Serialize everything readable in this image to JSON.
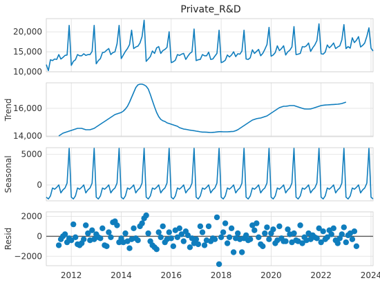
{
  "chart_data": {
    "type": "line",
    "title": "Private_R&D",
    "x_range": [
      "2011-01",
      "2024-02"
    ],
    "x_ticks": [
      "2012",
      "2014",
      "2016",
      "2018",
      "2020",
      "2022",
      "2024"
    ],
    "grid": true,
    "panels": [
      {
        "name": "observed",
        "ylabel": "",
        "type": "line",
        "ylim": [
          10000,
          23300
        ],
        "y_ticks": [
          {
            "value": 10000,
            "label": "10,000"
          },
          {
            "value": 15000,
            "label": "15,000"
          },
          {
            "value": 20000,
            "label": "20,000"
          }
        ],
        "x_start": "2011-01",
        "values": [
          11800,
          10300,
          13000,
          12800,
          13200,
          13100,
          14300,
          13200,
          13600,
          14100,
          14200,
          21600,
          11600,
          12600,
          13000,
          14300,
          14000,
          14000,
          14500,
          14100,
          14300,
          14300,
          15100,
          21600,
          12000,
          12800,
          13300,
          14800,
          14900,
          15400,
          15800,
          14300,
          14800,
          15000,
          17000,
          21600,
          13300,
          14200,
          15100,
          15800,
          16800,
          20400,
          15800,
          16200,
          16400,
          17200,
          18800,
          22900,
          12600,
          13200,
          13800,
          15200,
          14600,
          16000,
          16300,
          14600,
          15300,
          15600,
          16100,
          20000,
          12300,
          12500,
          12900,
          14300,
          14100,
          14400,
          14600,
          13100,
          13900,
          14600,
          15000,
          20700,
          12800,
          13000,
          13100,
          14300,
          14000,
          14000,
          14900,
          13100,
          13200,
          13900,
          14600,
          20400,
          12300,
          12500,
          12900,
          14200,
          13700,
          14200,
          15000,
          13800,
          14500,
          14400,
          15200,
          20400,
          13200,
          13100,
          13500,
          15500,
          14600,
          15100,
          15600,
          14000,
          14600,
          15600,
          16800,
          21100,
          13900,
          14200,
          14800,
          16500,
          15300,
          15800,
          16500,
          14200,
          15000,
          15400,
          16200,
          21300,
          14300,
          14400,
          14600,
          16300,
          16200,
          16500,
          17200,
          15100,
          16000,
          16700,
          17800,
          22000,
          14500,
          14400,
          14900,
          16700,
          16000,
          16500,
          17200,
          15800,
          16200,
          16500,
          18000,
          21800,
          15800,
          16300,
          15900,
          18500,
          17300,
          17900,
          18800,
          16200,
          16600,
          17200,
          18900,
          21000,
          15900,
          15200
        ]
      },
      {
        "name": "trend",
        "ylabel": "Trend",
        "type": "line",
        "ylim": [
          13950,
          17850
        ],
        "y_ticks": [
          {
            "value": 14000,
            "label": "14,000"
          },
          {
            "value": 16000,
            "label": "16,000"
          }
        ],
        "x_start": "2011-07",
        "values": [
          14000,
          14100,
          14200,
          14250,
          14300,
          14350,
          14400,
          14450,
          14500,
          14550,
          14550,
          14550,
          14500,
          14450,
          14450,
          14450,
          14500,
          14550,
          14650,
          14750,
          14850,
          14950,
          15050,
          15150,
          15250,
          15350,
          15450,
          15550,
          15600,
          15650,
          15700,
          15800,
          15950,
          16150,
          16450,
          16800,
          17150,
          17500,
          17700,
          17750,
          17750,
          17700,
          17600,
          17400,
          17000,
          16550,
          16100,
          15700,
          15400,
          15200,
          15100,
          15050,
          14950,
          14900,
          14850,
          14800,
          14750,
          14700,
          14600,
          14550,
          14500,
          14480,
          14450,
          14420,
          14400,
          14380,
          14350,
          14330,
          14300,
          14280,
          14280,
          14270,
          14260,
          14250,
          14260,
          14270,
          14290,
          14310,
          14310,
          14300,
          14300,
          14300,
          14310,
          14320,
          14330,
          14380,
          14450,
          14550,
          14650,
          14750,
          14850,
          14950,
          15050,
          15150,
          15200,
          15250,
          15280,
          15300,
          15350,
          15400,
          15450,
          15550,
          15650,
          15750,
          15850,
          15950,
          16050,
          16100,
          16150,
          16150,
          16170,
          16200,
          16200,
          16200,
          16150,
          16100,
          16050,
          16000,
          15960,
          15950,
          15950,
          15960,
          16000,
          16050,
          16100,
          16150,
          16200,
          16220,
          16240,
          16250,
          16260,
          16270,
          16280,
          16290,
          16300,
          16320,
          16350,
          16400,
          16450
        ]
      },
      {
        "name": "seasonal",
        "ylabel": "Seasonal",
        "type": "line",
        "ylim": [
          -2600,
          6100
        ],
        "y_ticks": [
          {
            "value": 0,
            "label": "0"
          },
          {
            "value": 5000,
            "label": "5000"
          }
        ],
        "x_start": "2011-01",
        "pattern": [
          -2000,
          -2300,
          -1800,
          -500,
          -700,
          -400,
          0,
          -1300,
          -800,
          -500,
          300,
          6000
        ],
        "n_points": 158
      },
      {
        "name": "resid",
        "ylabel": "Resid",
        "type": "scatter",
        "ylim": [
          -2950,
          2450
        ],
        "y_ticks": [
          {
            "value": -2000,
            "label": "−2000"
          },
          {
            "value": 0,
            "label": "0"
          },
          {
            "value": 2000,
            "label": "2000"
          }
        ],
        "zero_line": 0,
        "x_start": "2011-07",
        "values": [
          -900,
          -300,
          0,
          200,
          -600,
          -200,
          -400,
          1200,
          -100,
          -800,
          -900,
          -700,
          -300,
          1100,
          300,
          -400,
          600,
          -300,
          200,
          -100,
          -200,
          800,
          -900,
          -1000,
          400,
          -100,
          1400,
          1500,
          1100,
          -600,
          -200,
          -600,
          300,
          -500,
          -1200,
          -300,
          800,
          -200,
          -400,
          1000,
          1300,
          1800,
          2100,
          300,
          -500,
          -900,
          -1100,
          -1300,
          400,
          -100,
          1000,
          -600,
          -300,
          400,
          -200,
          -1000,
          600,
          -100,
          800,
          200,
          -500,
          500,
          100,
          -1100,
          -200,
          -700,
          -300,
          -800,
          1000,
          400,
          -900,
          -400,
          1000,
          -500,
          -200,
          -300,
          1900,
          -2800,
          -100,
          400,
          1300,
          -700,
          -100,
          800,
          -1600,
          -200,
          300,
          -300,
          -1600,
          -200,
          100,
          -400,
          -300,
          1100,
          600,
          1300,
          -100,
          -800,
          -1000,
          300,
          900,
          -300,
          300,
          700,
          -700,
          -400,
          1000,
          -200,
          -500,
          -500,
          700,
          200,
          -600,
          300,
          -400,
          -500,
          1100,
          -700,
          -100,
          -400,
          300,
          -300,
          100,
          -100,
          -200,
          800,
          -600,
          500,
          -300,
          -100,
          600,
          200,
          800,
          -400,
          -700,
          -200,
          200,
          900,
          -600,
          100,
          300,
          -300,
          500,
          -1000
        ]
      }
    ]
  }
}
